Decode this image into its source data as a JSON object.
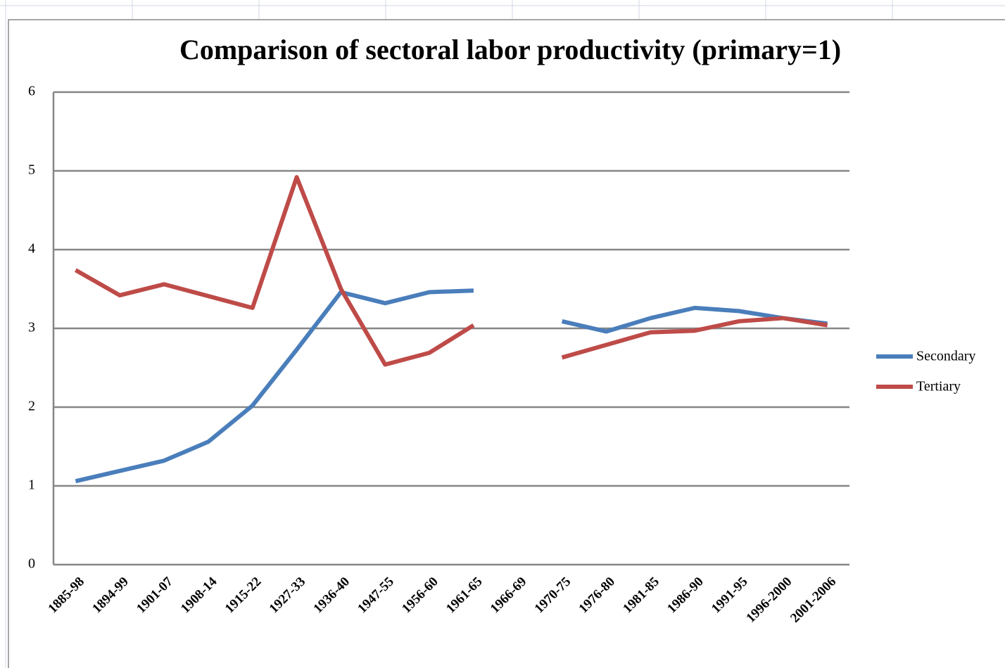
{
  "chart_data": {
    "type": "line",
    "title": "Comparison of sectoral labor productivity (primary=1)",
    "categories": [
      "1885-98",
      "1894-99",
      "1901-07",
      "1908-14",
      "1915-22",
      "1927-33",
      "1936-40",
      "1947-55",
      "1956-60",
      "1961-65",
      "1966-69",
      "1970-75",
      "1976-80",
      "1981-85",
      "1986-90",
      "1991-95",
      "1996-2000",
      "2001-2006"
    ],
    "series": [
      {
        "name": "Secondary",
        "color": "#4a7ebb",
        "values": [
          1.06,
          1.19,
          1.32,
          1.56,
          2.02,
          2.73,
          3.46,
          3.32,
          3.46,
          3.48,
          null,
          3.09,
          2.96,
          3.13,
          3.26,
          3.22,
          3.13,
          3.06
        ]
      },
      {
        "name": "Tertiary",
        "color": "#be4b48",
        "values": [
          3.74,
          3.42,
          3.56,
          3.41,
          3.26,
          4.92,
          3.5,
          2.54,
          2.69,
          3.04,
          null,
          2.63,
          2.79,
          2.95,
          2.97,
          3.09,
          3.13,
          3.04
        ]
      }
    ],
    "ylim": [
      0,
      6
    ],
    "yticks": [
      0,
      1,
      2,
      3,
      4,
      5,
      6
    ],
    "grid": true,
    "legend": "right"
  }
}
